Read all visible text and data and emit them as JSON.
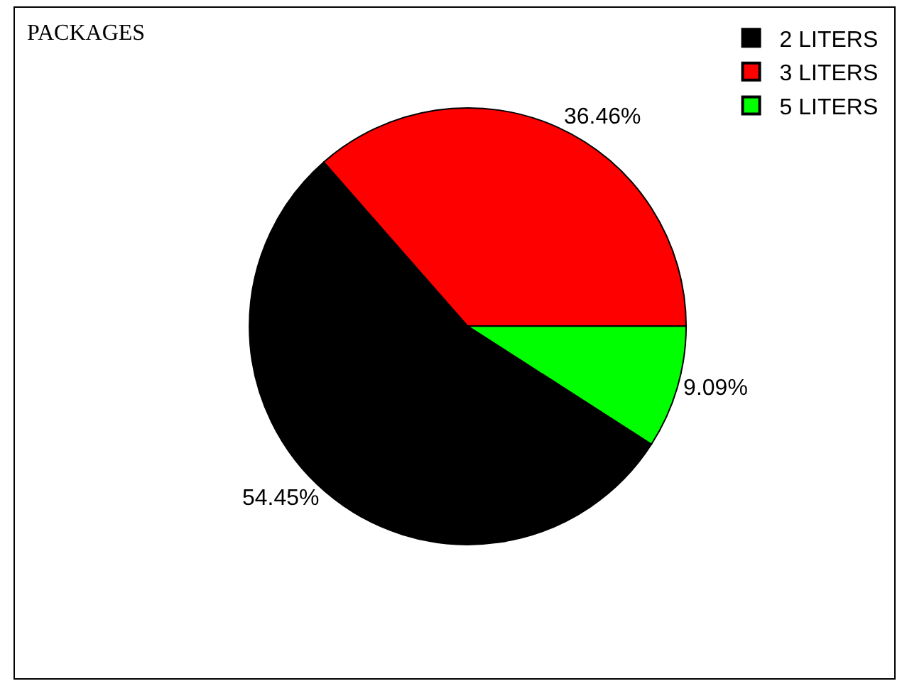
{
  "chart_data": {
    "type": "pie",
    "title": "PACKAGES",
    "categories": [
      "2 LITERS",
      "3 LITERS",
      "5 LITERS"
    ],
    "values": [
      54.45,
      36.46,
      9.09
    ],
    "colors": [
      "#000000",
      "#ff0000",
      "#00ff00"
    ],
    "value_labels": [
      "54.45%",
      "36.46%",
      "9.09%"
    ],
    "legend": "top right"
  }
}
